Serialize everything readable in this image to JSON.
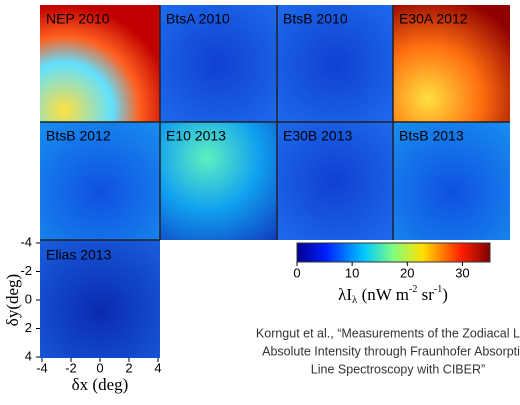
{
  "panels": [
    {
      "label": "NEP 2010"
    },
    {
      "label": "BtsA 2010"
    },
    {
      "label": "BtsB 2010"
    },
    {
      "label": "E30A 2012"
    },
    {
      "label": "BtsB 2012"
    },
    {
      "label": "E10 2013"
    },
    {
      "label": "E30B 2013"
    },
    {
      "label": "BtsB 2013"
    },
    {
      "label": "Elias 2013"
    }
  ],
  "axes": {
    "xlabel": "δx (deg)",
    "ylabel": "δy(deg)",
    "xlim": [
      -4,
      4
    ],
    "xticks": [
      -4,
      -2,
      0,
      2,
      4
    ],
    "ylim": [
      -4,
      4
    ],
    "yticks": [
      -4,
      -2,
      0,
      2,
      4
    ]
  },
  "colorbar": {
    "clim": [
      0,
      35
    ],
    "ticks": [
      0,
      10,
      20,
      30
    ],
    "label": {
      "main": "λI",
      "sub": "λ",
      "unit1": " (nW m",
      "sup1": "-2",
      "unit2": " sr",
      "sup2": "-1",
      "end": ")"
    }
  },
  "citation": [
    "Korngut et al., “Measurements of the Zodiacal Light",
    "Absolute Intensity through Fraunhofer Absorption",
    "Line Spectroscopy with CIBER”"
  ]
}
